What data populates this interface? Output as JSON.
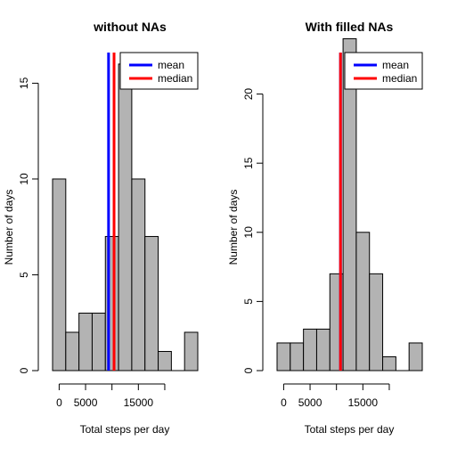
{
  "chart_data": [
    {
      "type": "bar",
      "title": "without NAs",
      "xlabel": "Total steps per day",
      "ylabel": "Number of days",
      "bin_edges": [
        0,
        2500,
        5000,
        7500,
        10000,
        12500,
        15000,
        17500,
        20000,
        22500,
        25000
      ],
      "values": [
        10,
        2,
        3,
        3,
        7,
        16,
        10,
        7,
        1,
        0,
        2
      ],
      "bin_start": -1250,
      "bin_width": 2500,
      "xlim": [
        -1250,
        26250
      ],
      "ylim": [
        0,
        16.6
      ],
      "xticks": [
        0,
        5000,
        15000
      ],
      "xtick_labels": [
        "0",
        "5000",
        "15000"
      ],
      "xaxis_max": 20000,
      "yticks": [
        0,
        5,
        10,
        15
      ],
      "ytick_labels": [
        "0",
        "5",
        "10",
        "15"
      ],
      "bar_color": "#b3b3b3",
      "lines": [
        {
          "name": "mean",
          "value": 9354,
          "color": "#0000ff"
        },
        {
          "name": "median",
          "value": 10395,
          "color": "#ff0000"
        }
      ],
      "legend": {
        "placement": "top-right",
        "entries": [
          "mean",
          "median"
        ]
      }
    },
    {
      "type": "bar",
      "title": "With filled NAs",
      "xlabel": "Total steps per day",
      "ylabel": "Number of days",
      "values": [
        2,
        2,
        3,
        3,
        7,
        24,
        10,
        7,
        1,
        0,
        2
      ],
      "bin_start": -1250,
      "bin_width": 2500,
      "xlim": [
        -1250,
        26250
      ],
      "ylim": [
        0,
        23.0
      ],
      "xticks": [
        0,
        5000,
        15000
      ],
      "xtick_labels": [
        "0",
        "5000",
        "15000"
      ],
      "xaxis_max": 20000,
      "yticks": [
        0,
        5,
        10,
        15,
        20
      ],
      "ytick_labels": [
        "0",
        "5",
        "10",
        "15",
        "20"
      ],
      "bar_color": "#b3b3b3",
      "lines": [
        {
          "name": "mean",
          "value": 10766,
          "color": "#0000ff"
        },
        {
          "name": "median",
          "value": 10766,
          "color": "#ff0000"
        }
      ],
      "legend": {
        "placement": "top-right",
        "entries": [
          "mean",
          "median"
        ]
      }
    }
  ]
}
